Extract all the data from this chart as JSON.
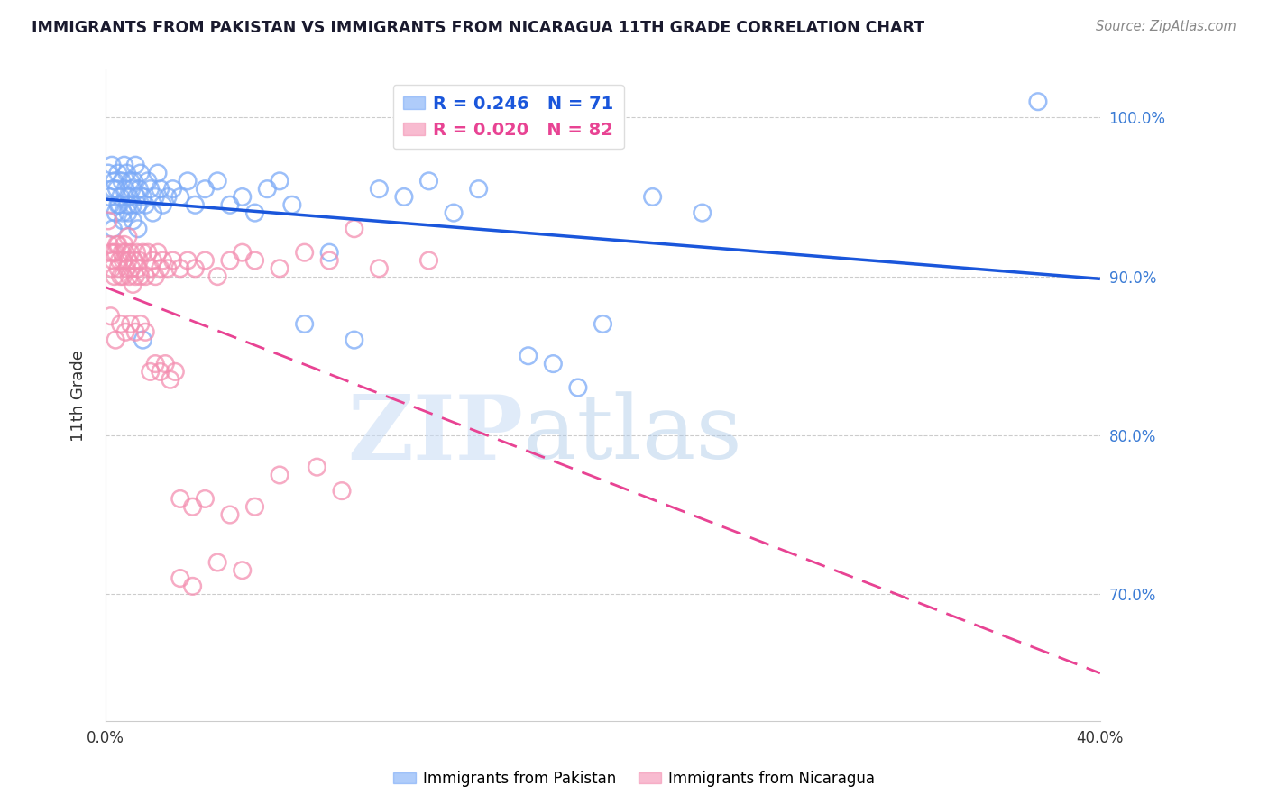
{
  "title": "IMMIGRANTS FROM PAKISTAN VS IMMIGRANTS FROM NICARAGUA 11TH GRADE CORRELATION CHART",
  "source": "Source: ZipAtlas.com",
  "ylabel": "11th Grade",
  "xlim": [
    0.0,
    40.0
  ],
  "ylim": [
    62.0,
    103.0
  ],
  "yticks": [
    70.0,
    80.0,
    90.0,
    100.0
  ],
  "ytick_labels": [
    "70.0%",
    "80.0%",
    "90.0%",
    "100.0%"
  ],
  "xticks": [
    0.0,
    10.0,
    20.0,
    30.0,
    40.0
  ],
  "xtick_labels": [
    "0.0%",
    "",
    "",
    "",
    "40.0%"
  ],
  "pakistan_color": "#7baaf7",
  "nicaragua_color": "#f48fb1",
  "pakistan_R": 0.246,
  "pakistan_N": 71,
  "nicaragua_R": 0.02,
  "nicaragua_N": 82,
  "watermark_zip": "ZIP",
  "watermark_atlas": "atlas",
  "pak_line_color": "#1a56db",
  "nic_line_color": "#e84393",
  "pakistan_scatter_x": [
    0.1,
    0.15,
    0.2,
    0.25,
    0.3,
    0.35,
    0.4,
    0.45,
    0.5,
    0.55,
    0.6,
    0.65,
    0.7,
    0.75,
    0.8,
    0.85,
    0.9,
    0.95,
    1.0,
    1.05,
    1.1,
    1.15,
    1.2,
    1.25,
    1.3,
    1.35,
    1.4,
    1.5,
    1.6,
    1.7,
    1.8,
    1.9,
    2.0,
    2.1,
    2.2,
    2.3,
    2.5,
    2.7,
    3.0,
    3.3,
    3.6,
    4.0,
    4.5,
    5.0,
    5.5,
    6.0,
    6.5,
    7.0,
    7.5,
    8.0,
    9.0,
    10.0,
    11.0,
    12.0,
    13.0,
    14.0,
    15.0,
    17.0,
    18.0,
    19.0,
    20.0,
    22.0,
    24.0,
    0.3,
    0.5,
    0.7,
    0.9,
    1.1,
    1.3,
    1.5,
    37.5
  ],
  "pakistan_scatter_y": [
    96.5,
    95.0,
    94.5,
    97.0,
    95.5,
    96.0,
    94.0,
    95.5,
    96.5,
    94.5,
    95.0,
    96.0,
    94.0,
    97.0,
    95.5,
    96.5,
    94.5,
    95.0,
    96.0,
    95.5,
    94.5,
    96.0,
    97.0,
    95.0,
    94.5,
    95.5,
    96.5,
    95.0,
    94.5,
    96.0,
    95.5,
    94.0,
    95.0,
    96.5,
    95.5,
    94.5,
    95.0,
    95.5,
    95.0,
    96.0,
    94.5,
    95.5,
    96.0,
    94.5,
    95.0,
    94.0,
    95.5,
    96.0,
    94.5,
    87.0,
    91.5,
    86.0,
    95.5,
    95.0,
    96.0,
    94.0,
    95.5,
    85.0,
    84.5,
    83.0,
    87.0,
    95.0,
    94.0,
    93.0,
    94.5,
    93.5,
    94.0,
    93.5,
    93.0,
    86.0,
    101.0
  ],
  "nicaragua_scatter_x": [
    0.1,
    0.15,
    0.2,
    0.25,
    0.3,
    0.35,
    0.4,
    0.45,
    0.5,
    0.55,
    0.6,
    0.65,
    0.7,
    0.75,
    0.8,
    0.85,
    0.9,
    0.95,
    1.0,
    1.05,
    1.1,
    1.15,
    1.2,
    1.25,
    1.3,
    1.35,
    1.4,
    1.5,
    1.6,
    1.7,
    1.8,
    1.9,
    2.0,
    2.1,
    2.2,
    2.3,
    2.5,
    2.7,
    3.0,
    3.3,
    3.6,
    4.0,
    4.5,
    5.0,
    5.5,
    6.0,
    7.0,
    8.0,
    9.0,
    10.0,
    11.0,
    13.0,
    0.2,
    0.4,
    0.6,
    0.8,
    1.0,
    1.2,
    1.4,
    1.6,
    1.8,
    2.0,
    2.2,
    2.4,
    2.6,
    2.8,
    3.0,
    3.5,
    4.0,
    5.0,
    6.0,
    7.0,
    8.5,
    9.5,
    3.0,
    3.5,
    4.5,
    5.5,
    0.3,
    0.5,
    0.7,
    0.9
  ],
  "nicaragua_scatter_y": [
    93.5,
    92.0,
    91.5,
    90.5,
    91.0,
    90.0,
    91.5,
    92.0,
    90.5,
    91.0,
    90.0,
    91.5,
    90.0,
    92.0,
    91.5,
    90.5,
    91.0,
    90.0,
    91.5,
    90.5,
    89.5,
    91.0,
    90.0,
    91.5,
    90.5,
    91.0,
    90.0,
    91.5,
    90.0,
    91.5,
    90.5,
    91.0,
    90.0,
    91.5,
    90.5,
    91.0,
    90.5,
    91.0,
    90.5,
    91.0,
    90.5,
    91.0,
    90.0,
    91.0,
    91.5,
    91.0,
    90.5,
    91.5,
    91.0,
    93.0,
    90.5,
    91.0,
    87.5,
    86.0,
    87.0,
    86.5,
    87.0,
    86.5,
    87.0,
    86.5,
    84.0,
    84.5,
    84.0,
    84.5,
    83.5,
    84.0,
    76.0,
    75.5,
    76.0,
    75.0,
    75.5,
    77.5,
    78.0,
    76.5,
    71.0,
    70.5,
    72.0,
    71.5,
    91.5,
    92.0,
    91.0,
    92.5
  ]
}
